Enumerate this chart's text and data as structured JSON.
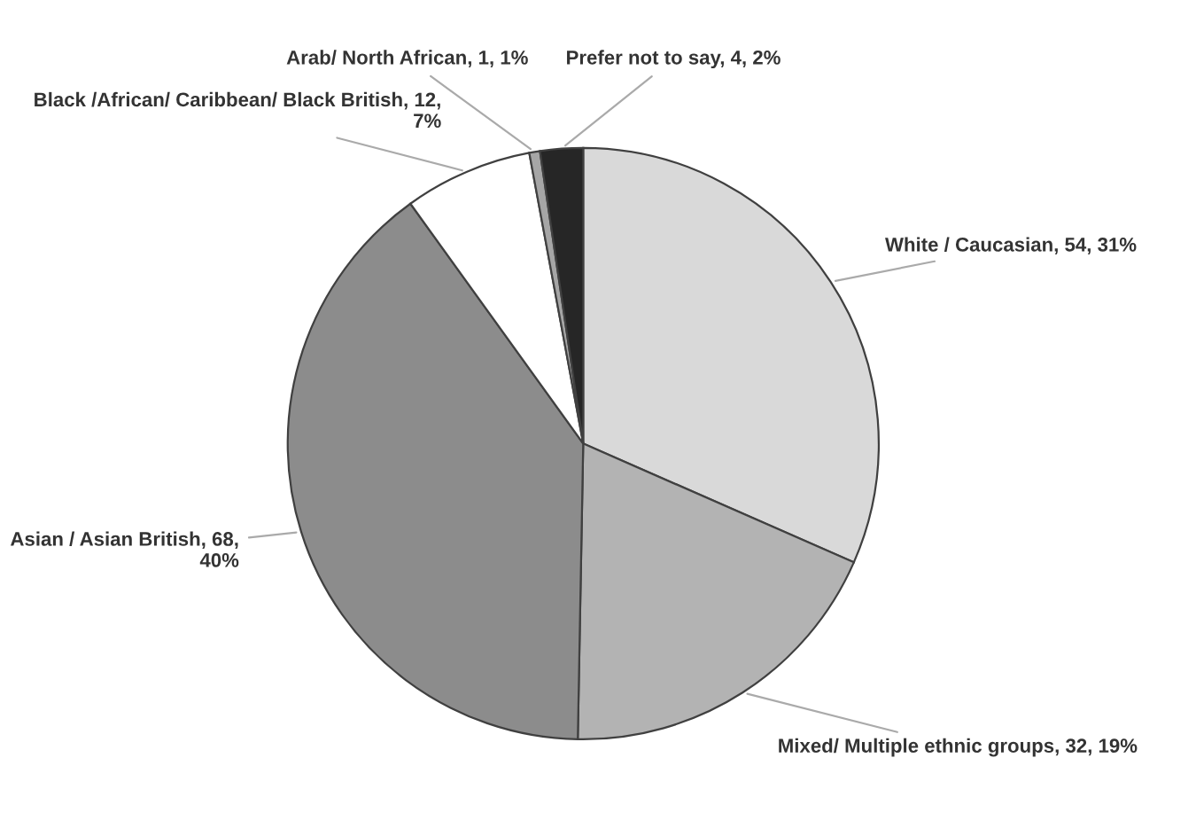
{
  "chart_data": {
    "type": "pie",
    "categories": [
      "White / Caucasian",
      "Mixed/ Multiple ethnic groups",
      "Asian / Asian British",
      "Black /African/ Caribbean/ Black British",
      "Arab/ North African",
      "Prefer not to say"
    ],
    "values": [
      54,
      32,
      68,
      12,
      1,
      4
    ],
    "value_labels": [
      "54, 31%",
      "32, 19%",
      "68, 40%",
      "12, 7%",
      "1, 1%",
      "4, 2%"
    ],
    "colors": [
      "#d9d9d9",
      "#b3b3b3",
      "#8c8c8c",
      "#ffffff",
      "#a6a6a6",
      "#262626"
    ]
  }
}
